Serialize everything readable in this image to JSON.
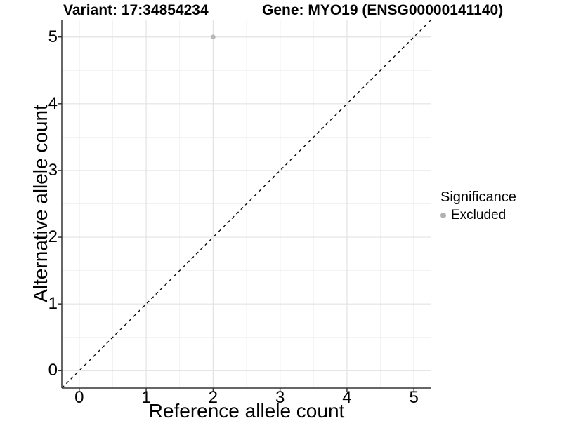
{
  "chart_data": {
    "type": "scatter",
    "title_left": "Variant: 17:34854234",
    "title_right": "Gene: MYO19 (ENSG00000141140)",
    "xlabel": "Reference allele count",
    "ylabel": "Alternative allele count",
    "xlim": [
      -0.26,
      5.26
    ],
    "ylim": [
      -0.26,
      5.26
    ],
    "x_ticks": [
      0,
      1,
      2,
      3,
      4,
      5
    ],
    "y_ticks": [
      0,
      1,
      2,
      3,
      4,
      5
    ],
    "minor_ticks": [
      0.5,
      1.5,
      2.5,
      3.5,
      4.5
    ],
    "grid": "major+minor",
    "legend_position": "right",
    "series": [
      {
        "name": "Excluded",
        "color": "#b8b8b8",
        "points": [
          {
            "x": 2,
            "y": 5
          }
        ]
      }
    ],
    "reference_line": {
      "kind": "identity",
      "equation": "y = x",
      "style": "dashed",
      "color": "#000000"
    }
  },
  "legend": {
    "title": "Significance",
    "items": [
      {
        "label": "Excluded",
        "color": "#b2b2b2",
        "marker": "circle"
      }
    ]
  },
  "colors": {
    "background": "#ffffff",
    "grid_major": "#e3e3e3",
    "grid_minor": "#f1f1f1",
    "axis": "#333333",
    "text": "#000000",
    "point": "#b8b8b8"
  }
}
